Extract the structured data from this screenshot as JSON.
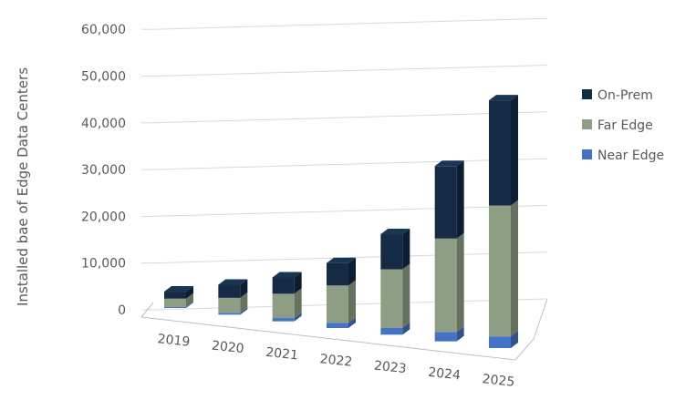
{
  "chart_data": {
    "type": "bar",
    "stacked": true,
    "three_d": true,
    "categories": [
      "2019",
      "2020",
      "2021",
      "2022",
      "2023",
      "2024",
      "2025"
    ],
    "series": [
      {
        "name": "Near Edge",
        "color": "#4472c4",
        "values": [
          200,
          400,
          700,
          1100,
          1500,
          2000,
          2500
        ]
      },
      {
        "name": "Far Edge",
        "color": "#8d9e84",
        "values": [
          1800,
          3200,
          5200,
          8000,
          12500,
          20000,
          28000
        ]
      },
      {
        "name": "On-Prem",
        "color": "#142a45",
        "values": [
          1500,
          2800,
          3500,
          4800,
          7500,
          15500,
          22500
        ]
      }
    ],
    "y_ticks": [
      "0",
      "10,000",
      "20,000",
      "30,000",
      "40,000",
      "50,000",
      "60,000"
    ],
    "ylim": [
      0,
      60000
    ],
    "title": "",
    "xlabel": "",
    "ylabel": "Installed bae of Edge  Data Centers",
    "grid": true,
    "legend_position": "right",
    "legend_order": [
      "On-Prem",
      "Far Edge",
      "Near Edge"
    ]
  }
}
